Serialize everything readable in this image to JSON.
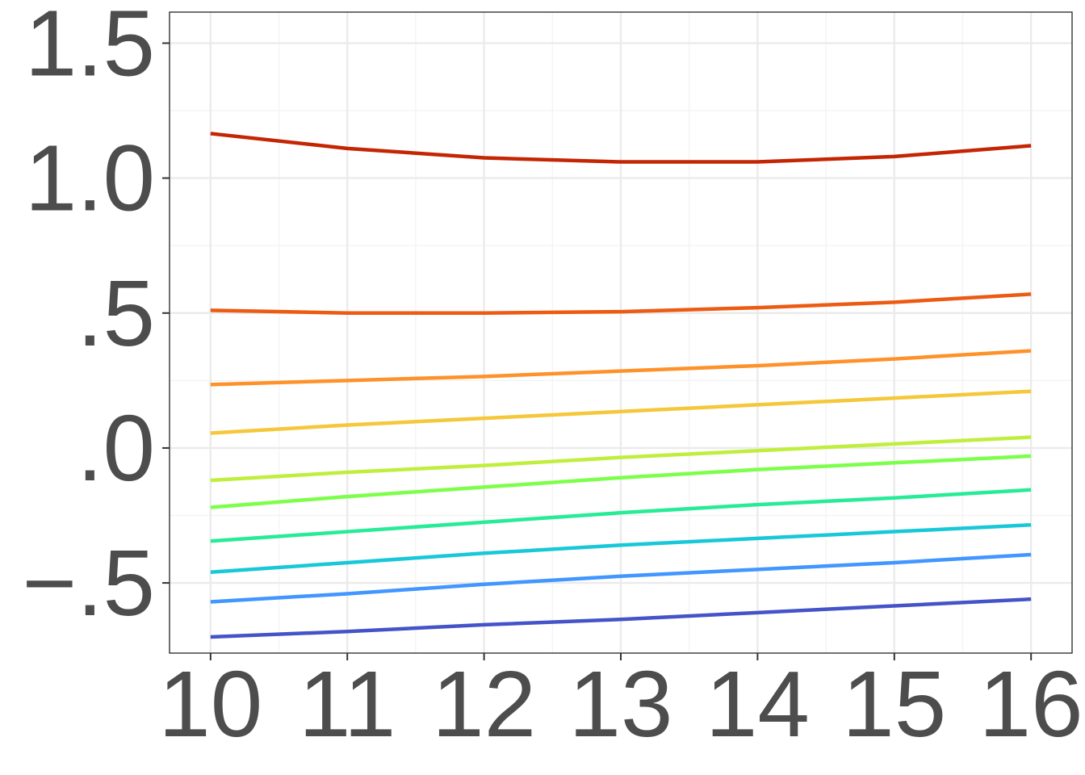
{
  "chart_data": {
    "type": "line",
    "title": "",
    "xlabel": "",
    "ylabel": "",
    "xlim": [
      9.7,
      16.3
    ],
    "ylim": [
      -0.76,
      1.615
    ],
    "x": [
      10,
      11,
      12,
      13,
      14,
      15,
      16
    ],
    "x_ticks": [
      10,
      11,
      12,
      13,
      14,
      15,
      16
    ],
    "x_tick_labels": [
      "10",
      "11",
      "12",
      "13",
      "14",
      "15",
      "16"
    ],
    "y_ticks": [
      -0.5,
      0.0,
      0.5,
      1.0,
      1.5
    ],
    "y_tick_labels": [
      "−.5",
      ".0",
      ".5",
      "1.0",
      "1.5"
    ],
    "grid": true,
    "legend": "none",
    "series": [
      {
        "color": "#4454c8",
        "values": [
          -0.7,
          -0.68,
          -0.655,
          -0.635,
          -0.61,
          -0.585,
          -0.56
        ]
      },
      {
        "color": "#4196ff",
        "values": [
          -0.57,
          -0.54,
          -0.505,
          -0.475,
          -0.45,
          -0.425,
          -0.395
        ]
      },
      {
        "color": "#18c8d8",
        "values": [
          -0.46,
          -0.425,
          -0.39,
          -0.36,
          -0.335,
          -0.31,
          -0.285
        ]
      },
      {
        "color": "#27eb96",
        "values": [
          -0.345,
          -0.31,
          -0.275,
          -0.24,
          -0.21,
          -0.185,
          -0.155
        ]
      },
      {
        "color": "#7cff4b",
        "values": [
          -0.22,
          -0.18,
          -0.145,
          -0.11,
          -0.08,
          -0.055,
          -0.03
        ]
      },
      {
        "color": "#c0ee3d",
        "values": [
          -0.12,
          -0.09,
          -0.065,
          -0.035,
          -0.01,
          0.015,
          0.04
        ]
      },
      {
        "color": "#f5c73a",
        "values": [
          0.055,
          0.085,
          0.11,
          0.135,
          0.16,
          0.185,
          0.21
        ]
      },
      {
        "color": "#fe922a",
        "values": [
          0.235,
          0.25,
          0.265,
          0.285,
          0.305,
          0.33,
          0.36
        ]
      },
      {
        "color": "#ed5a12",
        "values": [
          0.51,
          0.5,
          0.5,
          0.505,
          0.52,
          0.54,
          0.57
        ]
      },
      {
        "color": "#c42503",
        "values": [
          1.165,
          1.11,
          1.075,
          1.06,
          1.06,
          1.08,
          1.12
        ]
      }
    ]
  }
}
